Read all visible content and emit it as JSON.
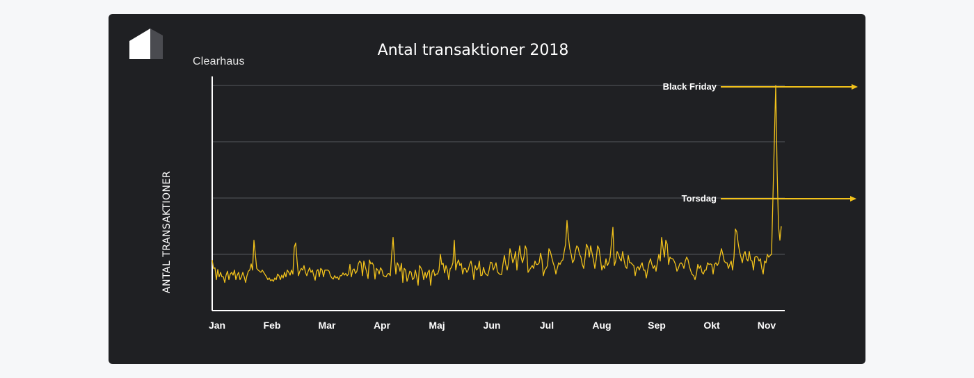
{
  "brand": {
    "name": "Clearhaus",
    "logo_icon": "clearhaus-logo-icon"
  },
  "colors": {
    "background": "#f6f7f9",
    "card": "#1f2023",
    "line": "#f2c21b",
    "grid": "#55575c",
    "text": "#ffffff"
  },
  "chart_data": {
    "type": "line",
    "title": "Antal transaktioner 2018",
    "ylabel": "ANTAL TRANSAKTIONER",
    "xlabel": "",
    "x_tick_labels": [
      "Jan",
      "Feb",
      "Mar",
      "Apr",
      "Maj",
      "Jun",
      "Jul",
      "Aug",
      "Sep",
      "Okt",
      "Nov"
    ],
    "ylim": [
      0,
      4.0
    ],
    "y_gridlines": [
      1,
      2,
      3,
      4
    ],
    "y_tick_labels_shown": false,
    "grid": true,
    "series": [
      {
        "color": "#f2c21b",
        "values": [
          0.9,
          0.75,
          0.76,
          0.55,
          0.73,
          0.6,
          0.68,
          0.6,
          0.6,
          0.5,
          0.63,
          0.7,
          0.55,
          0.65,
          0.68,
          0.63,
          0.72,
          0.55,
          0.63,
          0.68,
          0.55,
          0.6,
          0.68,
          0.6,
          0.5,
          0.62,
          0.7,
          0.72,
          0.83,
          0.72,
          1.25,
          1.0,
          0.75,
          0.72,
          0.7,
          0.68,
          0.72,
          0.68,
          0.64,
          0.6,
          0.55,
          0.58,
          0.53,
          0.55,
          0.52,
          0.58,
          0.55,
          0.65,
          0.62,
          0.55,
          0.63,
          0.58,
          0.68,
          0.6,
          0.72,
          0.68,
          0.63,
          0.72,
          0.65,
          1.13,
          1.2,
          0.88,
          0.62,
          0.7,
          0.75,
          0.72,
          0.8,
          0.68,
          0.62,
          0.7,
          0.76,
          0.68,
          0.72,
          0.62,
          0.54,
          0.7,
          0.73,
          0.6,
          0.75,
          0.72,
          0.6,
          0.72,
          0.72,
          0.72,
          0.7,
          0.62,
          0.58,
          0.56,
          0.62,
          0.58,
          0.6,
          0.55,
          0.62,
          0.62,
          0.67,
          0.63,
          0.66,
          0.62,
          0.65,
          0.82,
          0.6,
          0.72,
          0.74,
          0.66,
          0.7,
          0.83,
          0.88,
          0.85,
          0.62,
          0.88,
          0.78,
          0.69,
          0.57,
          0.9,
          0.83,
          0.85,
          0.8,
          0.56,
          0.75,
          0.72,
          0.65,
          0.76,
          0.72,
          0.62,
          0.61,
          0.6,
          0.65,
          0.66,
          0.62,
          1.0,
          1.3,
          0.92,
          0.65,
          0.85,
          0.8,
          0.7,
          0.84,
          0.5,
          0.75,
          0.72,
          0.52,
          0.6,
          0.7,
          0.68,
          0.55,
          0.58,
          0.72,
          0.6,
          0.45,
          0.8,
          0.76,
          0.7,
          0.55,
          0.68,
          0.58,
          0.68,
          0.72,
          0.45,
          0.68,
          0.73,
          0.62,
          0.65,
          0.65,
          0.72,
          1.0,
          0.82,
          0.84,
          0.67,
          0.8,
          0.72,
          0.55,
          0.74,
          0.77,
          0.85,
          1.25,
          0.72,
          0.84,
          0.9,
          0.8,
          0.84,
          0.65,
          0.75,
          0.75,
          0.68,
          0.72,
          0.82,
          0.88,
          0.75,
          0.55,
          0.8,
          0.72,
          0.75,
          0.88,
          0.62,
          0.63,
          0.77,
          0.67,
          0.64,
          0.62,
          0.72,
          0.86,
          0.85,
          0.72,
          0.78,
          0.85,
          0.69,
          0.66,
          0.64,
          0.64,
          0.83,
          0.98,
          0.82,
          0.72,
          0.85,
          1.1,
          1.0,
          0.85,
          0.92,
          1.05,
          0.72,
          0.95,
          1.15,
          0.95,
          0.85,
          0.95,
          1.15,
          1.08,
          0.68,
          0.72,
          0.76,
          0.8,
          0.75,
          0.88,
          0.82,
          0.82,
          0.85,
          1.02,
          0.9,
          0.62,
          0.72,
          0.75,
          0.8,
          1.1,
          1.05,
          0.95,
          0.85,
          0.78,
          0.65,
          0.75,
          0.85,
          0.82,
          0.88,
          0.9,
          1.05,
          1.18,
          1.6,
          1.3,
          1.1,
          1.0,
          0.85,
          0.9,
          1.05,
          1.15,
          1.12,
          1.0,
          0.95,
          0.82,
          0.75,
          0.95,
          1.18,
          1.12,
          0.95,
          1.15,
          1.02,
          0.9,
          0.75,
          0.92,
          1.15,
          1.1,
          0.92,
          0.72,
          0.8,
          0.75,
          0.92,
          0.8,
          0.85,
          0.95,
          1.22,
          1.48,
          0.8,
          0.88,
          1.05,
          1.0,
          0.92,
          0.88,
          1.05,
          0.9,
          0.78,
          0.75,
          0.98,
          0.85,
          0.85,
          0.82,
          0.8,
          0.62,
          0.75,
          0.78,
          0.72,
          0.8,
          0.85,
          0.72,
          0.72,
          0.58,
          0.72,
          0.85,
          0.92,
          0.82,
          0.75,
          0.8,
          0.7,
          0.86,
          1.0,
          0.88,
          1.3,
          1.12,
          0.95,
          1.25,
          1.18,
          0.82,
          0.95,
          0.92,
          0.92,
          0.88,
          0.82,
          0.7,
          0.75,
          0.83,
          0.85,
          0.82,
          0.75,
          0.88,
          0.95,
          0.9,
          0.78,
          0.7,
          0.64,
          0.62,
          0.55,
          0.65,
          0.82,
          0.75,
          0.8,
          0.68,
          0.65,
          0.72,
          0.72,
          0.85,
          0.82,
          0.83,
          0.82,
          0.65,
          0.82,
          0.85,
          0.8,
          0.85,
          0.98,
          1.1,
          1.0,
          0.88,
          0.85,
          0.85,
          0.75,
          0.82,
          0.88,
          0.72,
          0.95,
          1.45,
          1.4,
          1.2,
          1.05,
          0.95,
          0.85,
          1.0,
          1.05,
          0.92,
          0.88,
          1.05,
          0.9,
          0.88,
          0.72,
          0.95,
          0.96,
          0.95,
          0.88,
          0.92,
          0.75,
          0.65,
          0.88,
          0.85,
          1.0,
          0.95,
          0.98,
          1.0,
          2.0,
          3.0,
          4.0,
          2.5,
          1.5,
          1.25,
          1.5
        ],
        "annotations": [
          {
            "label": "Black Friday",
            "x_index": 466
          },
          {
            "label": "Torsdag",
            "x_index": 465
          }
        ]
      }
    ]
  }
}
